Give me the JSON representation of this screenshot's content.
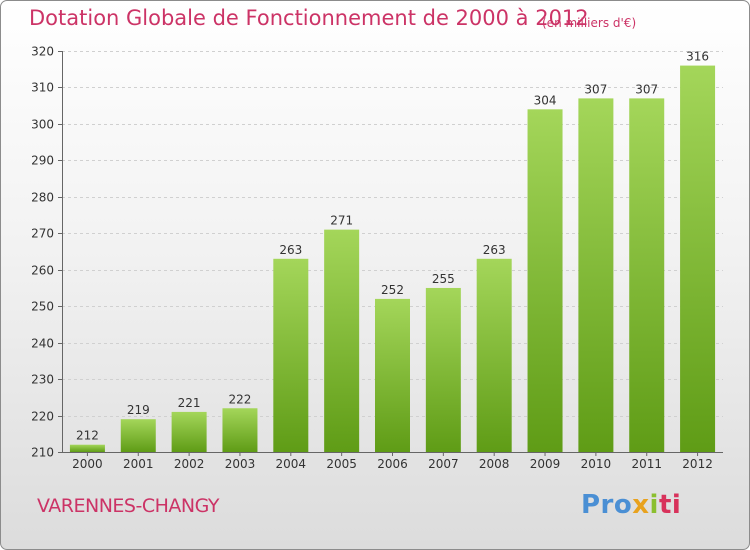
{
  "header": {
    "title": "Dotation Globale de Fonctionnement de 2000 à 2012",
    "subtitle": "(en milliers d'€)"
  },
  "footer": {
    "commune": "VARENNES-CHANGY",
    "logo_parts": [
      "Pro",
      "x",
      "i",
      "ti"
    ]
  },
  "colors": {
    "title": "#cc3366",
    "bar_light": "#a4d65a",
    "bar_dark": "#5f9c16"
  },
  "chart_data": {
    "type": "bar",
    "categories": [
      "2000",
      "2001",
      "2002",
      "2003",
      "2004",
      "2005",
      "2006",
      "2007",
      "2008",
      "2009",
      "2010",
      "2011",
      "2012"
    ],
    "values": [
      212,
      219,
      221,
      222,
      263,
      271,
      252,
      255,
      263,
      304,
      307,
      307,
      316
    ],
    "ylim": [
      210,
      320
    ],
    "yticks": [
      210,
      220,
      230,
      240,
      250,
      260,
      270,
      280,
      290,
      300,
      310,
      320
    ],
    "grid": true,
    "data_labels": true
  }
}
